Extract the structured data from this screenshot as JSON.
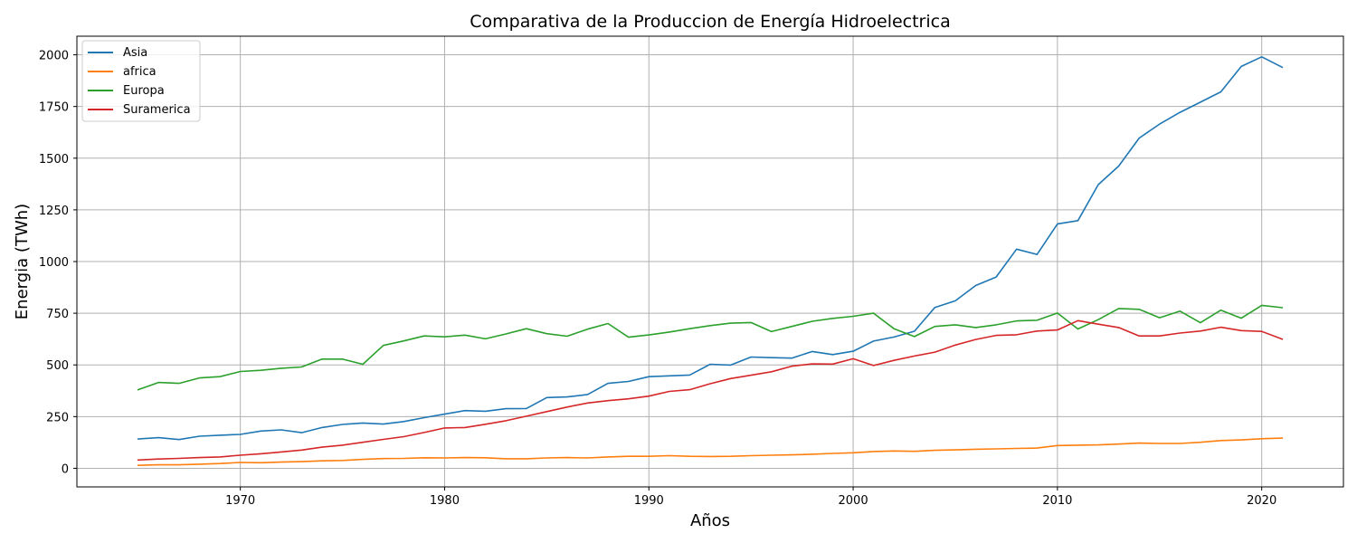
{
  "chart_data": {
    "type": "line",
    "title": "Comparativa de  la Produccion de Energía Hidroelectrica",
    "xlabel": "Años",
    "ylabel": "Energia (TWh)",
    "xlim": [
      1962,
      2024
    ],
    "ylim": [
      -90,
      2090
    ],
    "x_ticks": [
      1970,
      1980,
      1990,
      2000,
      2010,
      2020
    ],
    "y_ticks": [
      0,
      250,
      500,
      750,
      1000,
      1250,
      1500,
      1750,
      2000
    ],
    "grid": true,
    "legend_position": "top-left",
    "x": [
      1965,
      1966,
      1967,
      1968,
      1969,
      1970,
      1971,
      1972,
      1973,
      1974,
      1975,
      1976,
      1977,
      1978,
      1979,
      1980,
      1981,
      1982,
      1983,
      1984,
      1985,
      1986,
      1987,
      1988,
      1989,
      1990,
      1991,
      1992,
      1993,
      1994,
      1995,
      1996,
      1997,
      1998,
      1999,
      2000,
      2001,
      2002,
      2003,
      2004,
      2005,
      2006,
      2007,
      2008,
      2009,
      2010,
      2011,
      2012,
      2013,
      2014,
      2015,
      2016,
      2017,
      2018,
      2019,
      2020,
      2021
    ],
    "series": [
      {
        "name": "Asia",
        "color": "#1f77b4",
        "values": [
          142,
          148,
          139,
          155,
          160,
          164,
          180,
          186,
          172,
          197,
          212,
          219,
          214,
          226,
          245,
          262,
          279,
          276,
          288,
          289,
          342,
          345,
          357,
          411,
          420,
          443,
          447,
          451,
          503,
          499,
          538,
          535,
          533,
          565,
          550,
          566,
          615,
          635,
          663,
          778,
          810,
          884,
          925,
          1060,
          1034,
          1182,
          1198,
          1372,
          1462,
          1597,
          1665,
          1722,
          1771,
          1821,
          1944,
          1990,
          1940
        ]
      },
      {
        "name": "africa",
        "color": "#ff7f0e",
        "values": [
          14,
          17,
          17,
          20,
          23,
          28,
          27,
          30,
          32,
          36,
          38,
          43,
          47,
          48,
          51,
          50,
          52,
          51,
          46,
          46,
          50,
          52,
          50,
          55,
          58,
          58,
          61,
          58,
          57,
          58,
          61,
          63,
          65,
          68,
          72,
          75,
          81,
          84,
          82,
          87,
          89,
          92,
          94,
          96,
          98,
          110,
          112,
          113,
          117,
          122,
          120,
          120,
          126,
          134,
          137,
          143,
          146
        ]
      },
      {
        "name": "Europa",
        "color": "#2ca02c",
        "values": [
          380,
          415,
          411,
          437,
          443,
          468,
          474,
          484,
          490,
          528,
          528,
          503,
          594,
          616,
          640,
          636,
          644,
          626,
          650,
          675,
          651,
          639,
          673,
          700,
          634,
          645,
          659,
          675,
          690,
          702,
          705,
          661,
          686,
          711,
          725,
          735,
          750,
          675,
          637,
          686,
          694,
          681,
          694,
          713,
          716,
          751,
          674,
          719,
          773,
          769,
          728,
          760,
          704,
          765,
          726,
          788,
          777
        ]
      },
      {
        "name": "Suramerica",
        "color": "#d62728",
        "values": [
          40,
          45,
          48,
          52,
          55,
          63,
          70,
          79,
          88,
          102,
          112,
          126,
          140,
          153,
          173,
          195,
          197,
          213,
          230,
          252,
          274,
          296,
          316,
          327,
          336,
          349,
          372,
          380,
          409,
          434,
          450,
          467,
          494,
          505,
          504,
          530,
          497,
          522,
          543,
          562,
          596,
          623,
          643,
          646,
          664,
          669,
          714,
          697,
          681,
          640,
          640,
          654,
          664,
          682,
          666,
          662,
          625
        ]
      }
    ]
  }
}
